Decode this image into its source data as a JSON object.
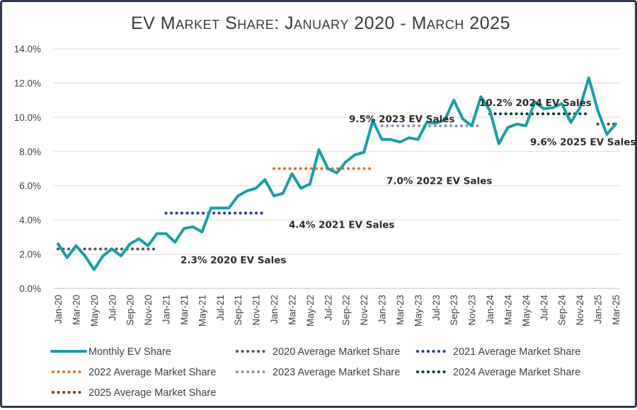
{
  "chart_data": {
    "type": "line",
    "title": "EV Market Share: January 2020 - March 2025",
    "ylim": [
      0,
      14
    ],
    "y_ticks": [
      "0.0%",
      "2.0%",
      "4.0%",
      "6.0%",
      "8.0%",
      "10.0%",
      "12.0%",
      "14.0%"
    ],
    "x_tick_labels": [
      "Jan-20",
      "Mar-20",
      "May-20",
      "Jul-20",
      "Sep-20",
      "Nov-20",
      "Jan-21",
      "Mar-21",
      "May-21",
      "Jul-21",
      "Sep-21",
      "Nov-21",
      "Jan-22",
      "Mar-22",
      "May-22",
      "Jul-22",
      "Sep-22",
      "Nov-22",
      "Jan-23",
      "Mar-23",
      "May-23",
      "Jul-23",
      "Sep-23",
      "Nov-23",
      "Jan-24",
      "Mar-24",
      "May-24",
      "Jul-24",
      "Sep-24",
      "Nov-24",
      "Jan-25",
      "Mar-25"
    ],
    "months": [
      "Jan-20",
      "Feb-20",
      "Mar-20",
      "Apr-20",
      "May-20",
      "Jun-20",
      "Jul-20",
      "Aug-20",
      "Sep-20",
      "Oct-20",
      "Nov-20",
      "Dec-20",
      "Jan-21",
      "Feb-21",
      "Mar-21",
      "Apr-21",
      "May-21",
      "Jun-21",
      "Jul-21",
      "Aug-21",
      "Sep-21",
      "Oct-21",
      "Nov-21",
      "Dec-21",
      "Jan-22",
      "Feb-22",
      "Mar-22",
      "Apr-22",
      "May-22",
      "Jun-22",
      "Jul-22",
      "Aug-22",
      "Sep-22",
      "Oct-22",
      "Nov-22",
      "Dec-22",
      "Jan-23",
      "Feb-23",
      "Mar-23",
      "Apr-23",
      "May-23",
      "Jun-23",
      "Jul-23",
      "Aug-23",
      "Sep-23",
      "Oct-23",
      "Nov-23",
      "Dec-23",
      "Jan-24",
      "Feb-24",
      "Mar-24",
      "Apr-24",
      "May-24",
      "Jun-24",
      "Jul-24",
      "Aug-24",
      "Sep-24",
      "Oct-24",
      "Nov-24",
      "Dec-24",
      "Jan-25",
      "Feb-25",
      "Mar-25"
    ],
    "series": [
      {
        "name": "Monthly EV Share",
        "color": "#16a0a8",
        "values": [
          2.6,
          1.8,
          2.5,
          1.9,
          1.1,
          1.9,
          2.3,
          1.9,
          2.6,
          2.9,
          2.5,
          3.2,
          3.2,
          2.7,
          3.5,
          3.6,
          3.3,
          4.7,
          4.7,
          4.7,
          5.4,
          5.7,
          5.85,
          6.35,
          5.4,
          5.55,
          6.7,
          5.85,
          6.1,
          8.1,
          7.0,
          6.75,
          7.4,
          7.8,
          7.95,
          9.8,
          8.7,
          8.7,
          8.55,
          8.8,
          8.7,
          9.7,
          9.65,
          9.85,
          11.0,
          9.9,
          9.5,
          11.2,
          10.4,
          8.45,
          9.4,
          9.6,
          9.5,
          10.9,
          10.5,
          10.55,
          10.8,
          9.7,
          10.55,
          12.3,
          10.4,
          9.0,
          9.6
        ]
      }
    ],
    "averages": [
      {
        "name": "2020 Average Market Share",
        "value": 2.3,
        "start": "Jan-20",
        "end": "Dec-20",
        "color": "#555555",
        "label": "2.3% 2020 EV Sales"
      },
      {
        "name": "2021 Average Market Share",
        "value": 4.4,
        "start": "Jan-21",
        "end": "Dec-21",
        "color": "#1f3f96",
        "label": "4.4% 2021 EV Sales"
      },
      {
        "name": "2022 Average Market Share",
        "value": 7.0,
        "start": "Jan-22",
        "end": "Dec-22",
        "color": "#e6711b",
        "label": "7.0% 2022 EV Sales"
      },
      {
        "name": "2023 Average Market Share",
        "value": 9.5,
        "start": "Jan-23",
        "end": "Dec-23",
        "color": "#8a98ad",
        "label": "9.5% 2023 EV Sales"
      },
      {
        "name": "2024 Average Market Share",
        "value": 10.2,
        "start": "Jan-24",
        "end": "Dec-24",
        "color": "#0f3a36",
        "label": "10.2% 2024 EV Sales"
      },
      {
        "name": "2025 Average Market Share",
        "value": 9.6,
        "start": "Jan-25",
        "end": "Mar-25",
        "color": "#7a3b12",
        "label": "9.6% 2025 EV Sales"
      }
    ],
    "legend_position": "bottom",
    "grid": "horizontal"
  }
}
